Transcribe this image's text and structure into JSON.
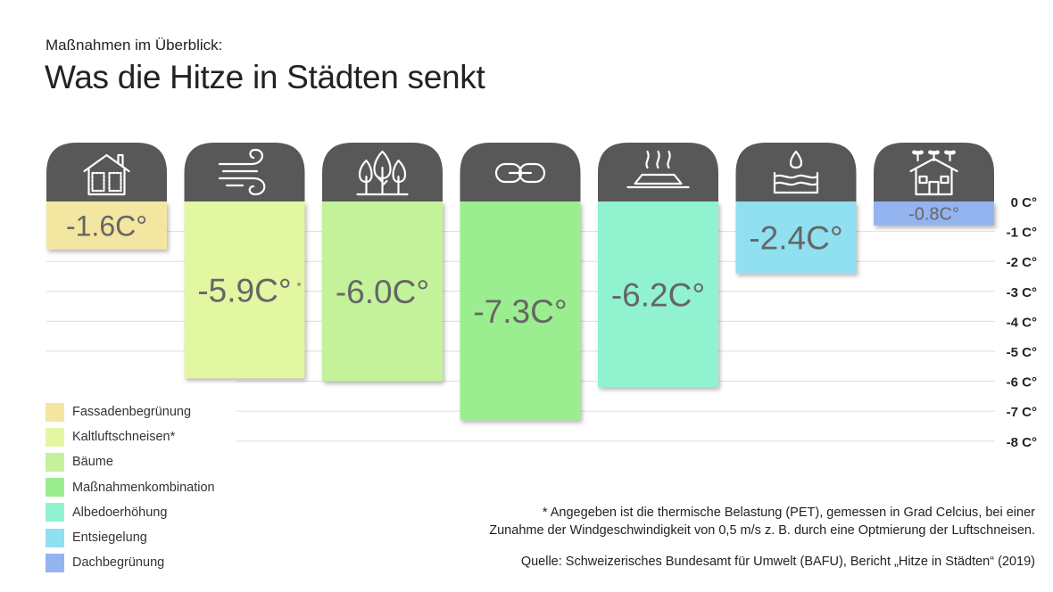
{
  "header": {
    "subtitle": "Maßnahmen im Überblick:",
    "title": "Was die Hitze in Städten senkt"
  },
  "chart_data": {
    "type": "bar",
    "categories": [
      "Fassadenbegrünung",
      "Kaltluftschneisen*",
      "Bäume",
      "Maßnahmenkombination",
      "Albedoerhöhung",
      "Entsiegelung",
      "Dachbegrünung"
    ],
    "values": [
      -1.6,
      -5.9,
      -6.0,
      -7.3,
      -6.2,
      -2.4,
      -0.8
    ],
    "value_labels": [
      "-1.6C°",
      "-5.9C°",
      "-6.0C°",
      "-7.3C°",
      "-6.2C°",
      "-2.4C°",
      "-0.8C°"
    ],
    "value_marks": [
      "",
      "*",
      "",
      "",
      "",
      "",
      ""
    ],
    "colors": [
      "#f2e6a1",
      "#e3f7a3",
      "#c4f29a",
      "#9bee8f",
      "#91f2d0",
      "#90e0f1",
      "#94b4f0"
    ],
    "icons": [
      "house-facade-icon",
      "wind-icon",
      "trees-icon",
      "link-icon",
      "heat-surface-icon",
      "water-drop-icon",
      "green-roof-house-icon"
    ],
    "ylim": [
      -8,
      0
    ],
    "yticks": [
      0,
      -1,
      -2,
      -3,
      -4,
      -5,
      -6,
      -7,
      -8
    ],
    "ytick_labels": [
      "0 C°",
      "-1 C°",
      "-2 C°",
      "-3 C°",
      "-4 C°",
      "-5 C°",
      "-6 C°",
      "-7 C°",
      "-8 C°"
    ],
    "grid": true
  },
  "legend": {
    "items": [
      {
        "label": "Fassadenbegrünung",
        "color": "#f2e6a1"
      },
      {
        "label": "Kaltluftschneisen*",
        "color": "#e3f7a3"
      },
      {
        "label": "Bäume",
        "color": "#c4f29a"
      },
      {
        "label": "Maßnahmenkombination",
        "color": "#9bee8f"
      },
      {
        "label": "Albedoerhöhung",
        "color": "#91f2d0"
      },
      {
        "label": "Entsiegelung",
        "color": "#90e0f1"
      },
      {
        "label": "Dachbegrünung",
        "color": "#94b4f0"
      }
    ]
  },
  "footnote": {
    "line1": "* Angegeben ist die thermische Belastung (PET), gemessen in Grad Celcius, bei einer",
    "line2": "Zunahme der Windgeschwindigkeit von 0,5 m/s z. B. durch eine Optmierung der Luftschneisen."
  },
  "source": "Quelle: Schweizerisches Bundesamt für Umwelt (BAFU), Bericht „Hitze in Städten“ (2019)"
}
